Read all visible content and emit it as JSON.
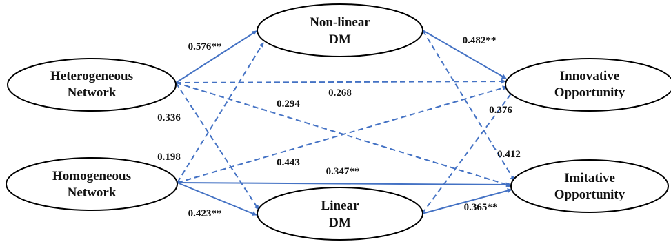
{
  "colors": {
    "edge": "#4472c4",
    "node_border": "#000000",
    "text": "#111111"
  },
  "nodes": {
    "nonlinear_dm": {
      "line1": "Non-linear",
      "line2": "DM"
    },
    "heterogeneous_network": {
      "line1": "Heterogeneous",
      "line2": "Network"
    },
    "innovative_opportunity": {
      "line1": "Innovative",
      "line2": "Opportunity"
    },
    "homogeneous_network": {
      "line1": "Homogeneous",
      "line2": "Network"
    },
    "imitative_opportunity": {
      "line1": "Imitative",
      "line2": "Opportunity"
    },
    "linear_dm": {
      "line1": "Linear",
      "line2": "DM"
    }
  },
  "edges": [
    {
      "id": "het-nonlinear",
      "from": "heterogeneous_network",
      "to": "nonlinear_dm",
      "style": "solid",
      "coefficient": "0.576**"
    },
    {
      "id": "het-innovative",
      "from": "heterogeneous_network",
      "to": "innovative_opportunity",
      "style": "dashed",
      "coefficient": "0.268"
    },
    {
      "id": "het-imitative",
      "from": "heterogeneous_network",
      "to": "imitative_opportunity",
      "style": "dashed",
      "coefficient": "0.294"
    },
    {
      "id": "het-linear",
      "from": "heterogeneous_network",
      "to": "linear_dm",
      "style": "dashed",
      "coefficient": "0.336"
    },
    {
      "id": "hom-nonlinear",
      "from": "homogeneous_network",
      "to": "nonlinear_dm",
      "style": "dashed",
      "coefficient": "0.198"
    },
    {
      "id": "hom-innovative",
      "from": "homogeneous_network",
      "to": "innovative_opportunity",
      "style": "dashed",
      "coefficient": "0.443"
    },
    {
      "id": "hom-imitative",
      "from": "homogeneous_network",
      "to": "imitative_opportunity",
      "style": "solid",
      "coefficient": "0.347**"
    },
    {
      "id": "hom-linear",
      "from": "homogeneous_network",
      "to": "linear_dm",
      "style": "solid",
      "coefficient": "0.423**"
    },
    {
      "id": "nonlinear-innovative",
      "from": "nonlinear_dm",
      "to": "innovative_opportunity",
      "style": "solid",
      "coefficient": "0.482**"
    },
    {
      "id": "nonlinear-imitative",
      "from": "nonlinear_dm",
      "to": "imitative_opportunity",
      "style": "dashed",
      "coefficient": "0.412"
    },
    {
      "id": "linear-innovative",
      "from": "linear_dm",
      "to": "innovative_opportunity",
      "style": "dashed",
      "coefficient": "0.376"
    },
    {
      "id": "linear-imitative",
      "from": "linear_dm",
      "to": "imitative_opportunity",
      "style": "solid",
      "coefficient": "0.365**"
    }
  ]
}
